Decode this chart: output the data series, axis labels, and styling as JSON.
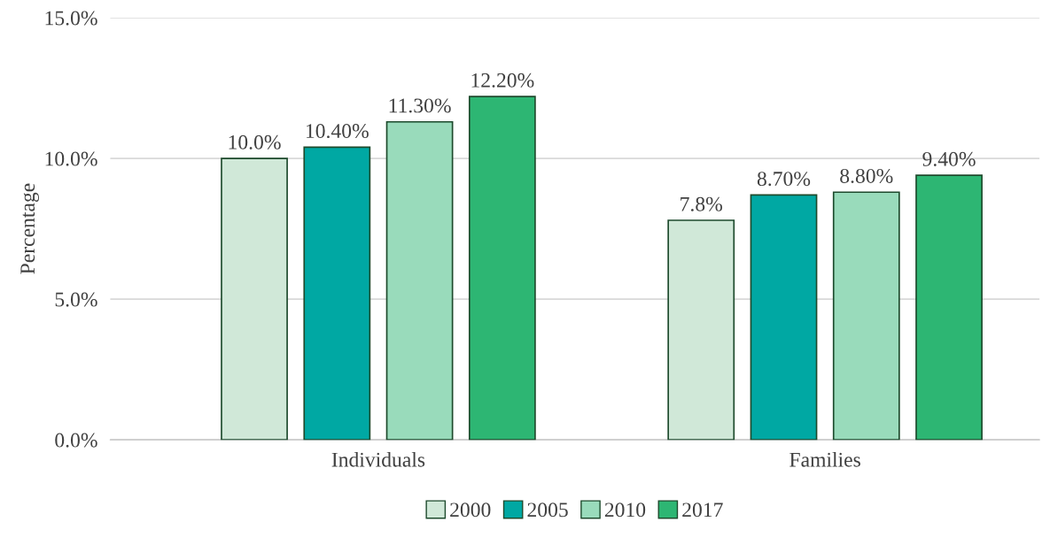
{
  "chart_data": {
    "type": "bar",
    "ylabel": "Percentage",
    "categories": [
      "Individuals",
      "Families"
    ],
    "series": [
      {
        "name": "2000",
        "color": "#d0e8d8",
        "values": [
          10.0,
          7.8
        ],
        "value_labels": [
          "10.0%",
          "7.8%"
        ]
      },
      {
        "name": "2005",
        "color": "#00a8a3",
        "values": [
          10.4,
          8.7
        ],
        "value_labels": [
          "10.40%",
          "8.70%"
        ]
      },
      {
        "name": "2010",
        "color": "#99dbbb",
        "values": [
          11.3,
          8.8
        ],
        "value_labels": [
          "11.30%",
          "8.80%"
        ]
      },
      {
        "name": "2017",
        "color": "#2db673",
        "values": [
          12.2,
          9.4
        ],
        "value_labels": [
          "12.20%",
          "9.40%"
        ]
      }
    ],
    "ylim": [
      0,
      15
    ],
    "yticks": [
      {
        "value": 0,
        "label": "0.0%"
      },
      {
        "value": 5,
        "label": "5.0%"
      },
      {
        "value": 10,
        "label": "10.0%"
      },
      {
        "value": 15,
        "label": "15.0%"
      }
    ],
    "grid": "y",
    "legend": "bottom"
  }
}
